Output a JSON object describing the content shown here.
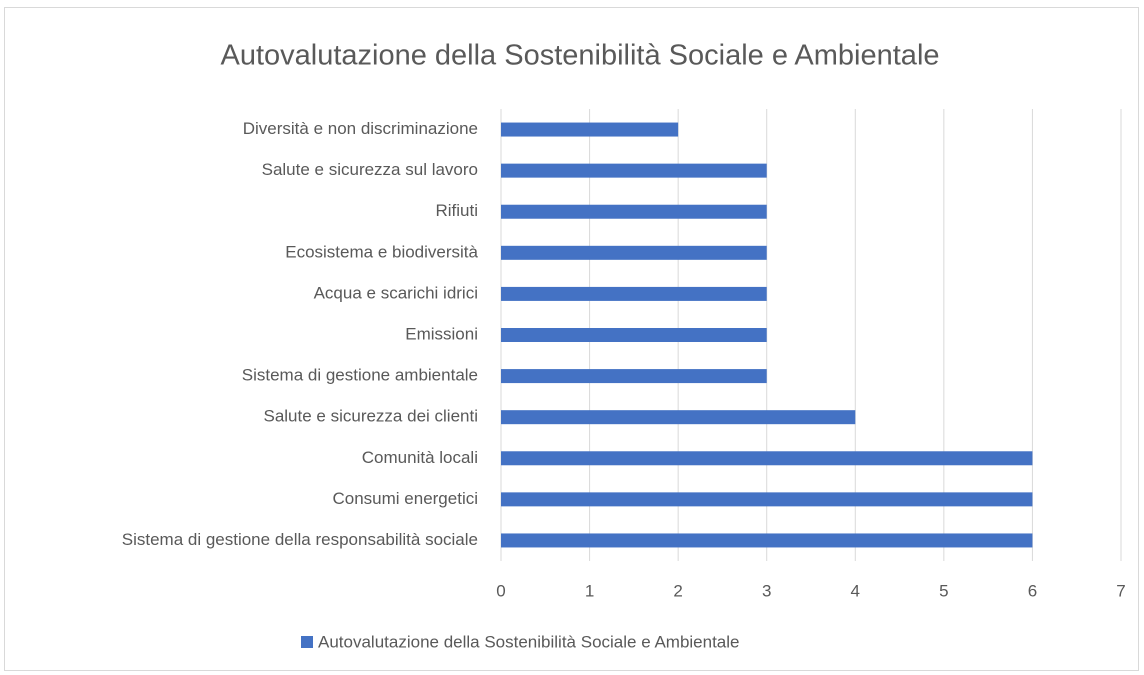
{
  "chart_data": {
    "type": "bar",
    "orientation": "horizontal",
    "title": "Autovalutazione della Sostenibilità Sociale e Ambientale",
    "categories": [
      "Diversità e non discriminazione",
      "Salute e sicurezza sul lavoro",
      "Rifiuti",
      "Ecosistema e biodiversità",
      "Acqua e scarichi idrici",
      "Emissioni",
      "Sistema di gestione ambientale",
      "Salute e sicurezza dei clienti",
      "Comunità locali",
      "Consumi energetici",
      "Sistema di gestione della responsabilità sociale"
    ],
    "series": [
      {
        "name": "Autovalutazione della Sostenibilità Sociale e Ambientale",
        "color": "#4472c4",
        "values": [
          2,
          3,
          3,
          3,
          3,
          3,
          3,
          4,
          6,
          6,
          6
        ]
      }
    ],
    "xlim": [
      0,
      7
    ],
    "xticks": [
      0,
      1,
      2,
      3,
      4,
      5,
      6,
      7
    ],
    "grid": true,
    "legend": "bottom"
  }
}
